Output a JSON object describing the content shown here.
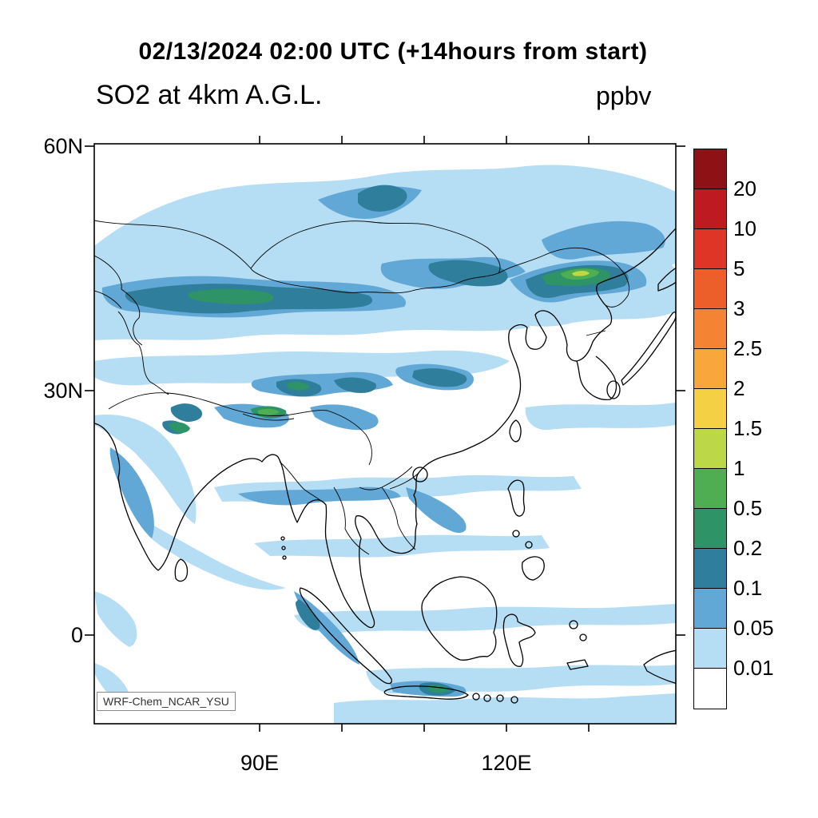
{
  "header": {
    "title": "02/13/2024 02:00 UTC (+14hours from start)",
    "subtitle": "SO2 at 4km A.G.L.",
    "units": "ppbv"
  },
  "map": {
    "y_axis_labels": [
      "60N",
      "30N",
      "0"
    ],
    "x_axis_labels": [
      "90E",
      "120E"
    ],
    "watermark": "WRF-Chem_NCAR_YSU"
  },
  "colorbar": {
    "tick_labels": [
      "20",
      "10",
      "5",
      "3",
      "2.5",
      "2",
      "1.5",
      "1",
      "0.5",
      "0.2",
      "0.1",
      "0.05",
      "0.01"
    ],
    "colors": [
      "#8D1216",
      "#BE1B21",
      "#DF3526",
      "#EC5F2A",
      "#F48433",
      "#F8A83B",
      "#F3D142",
      "#BCD847",
      "#4FAE51",
      "#2E9367",
      "#2F7E9C",
      "#62A8D6",
      "#B5DDF3",
      "#FFFFFF"
    ]
  },
  "chart_data": {
    "type": "heatmap",
    "title": "SO2 at 4km A.G.L.",
    "timestamp": "02/13/2024 02:00 UTC (+14hours from start)",
    "units": "ppbv",
    "model": "WRF-Chem_NCAR_YSU",
    "contour_levels": [
      0.01,
      0.05,
      0.1,
      0.2,
      0.5,
      1,
      1.5,
      2,
      2.5,
      3,
      5,
      10,
      20
    ],
    "lat_tick_labels": [
      "60N",
      "30N",
      "0"
    ],
    "lon_tick_labels": [
      "90E",
      "120E"
    ],
    "legend_position": "right",
    "value_range_shown": "below 0.01 (white) to about 1.5 ppbv (yellow-green maxima); red levels unused"
  }
}
